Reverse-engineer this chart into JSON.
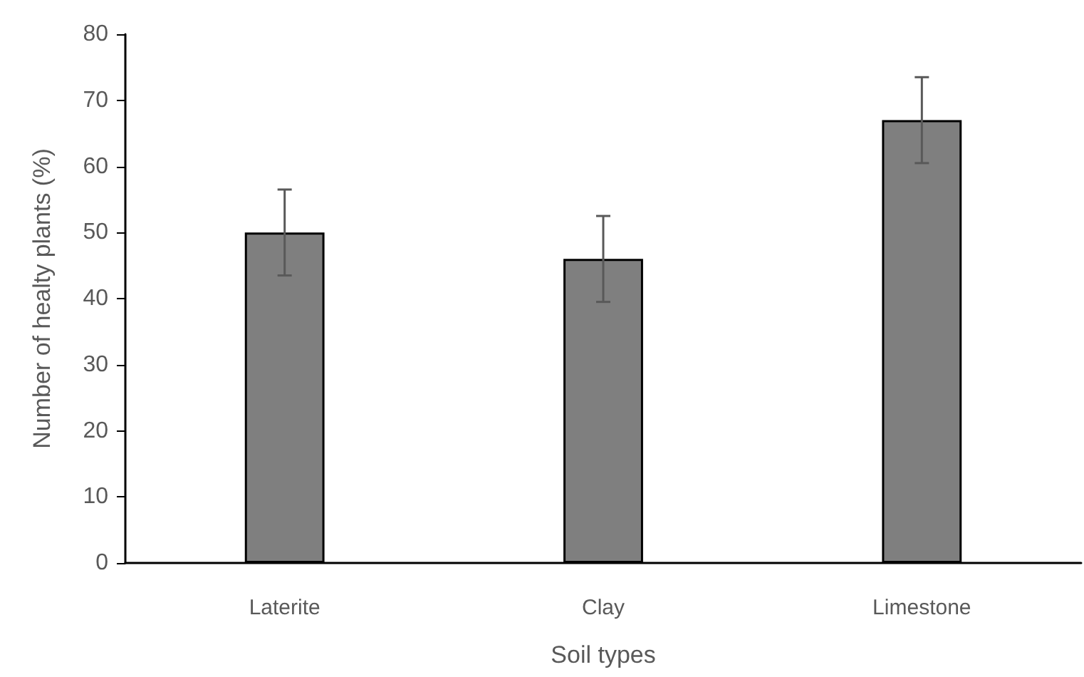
{
  "chart_data": {
    "type": "bar",
    "xlabel": "Soil types",
    "ylabel": "Number of healty plants (%)",
    "categories": [
      "Laterite",
      "Clay",
      "Limestone"
    ],
    "series": [
      {
        "color": "#7f7f7f",
        "values": [
          50,
          46,
          67
        ],
        "errors": [
          6.5,
          6.5,
          6.5
        ]
      }
    ],
    "ylim": [
      0,
      80
    ],
    "yticks": [
      0,
      10,
      20,
      30,
      40,
      50,
      60,
      70,
      80
    ],
    "grid": false
  }
}
